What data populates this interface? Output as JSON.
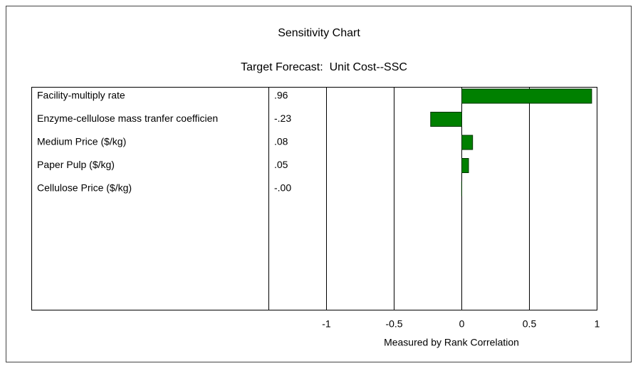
{
  "chart_data": {
    "type": "bar",
    "orientation": "horizontal",
    "title": "Sensitivity Chart",
    "subtitle": "Target Forecast:  Unit Cost--SSC",
    "x_label": "Measured by Rank Correlation",
    "categories": [
      "Facility-multiply rate",
      "Enzyme-cellulose mass tranfer coefficien",
      "Medium Price ($/kg)",
      "Paper Pulp ($/kg)",
      "Cellulose Price ($/kg)"
    ],
    "values": [
      0.96,
      -0.23,
      0.08,
      0.05,
      -0.001
    ],
    "value_labels": [
      ".96",
      "-.23",
      ".08",
      ".05",
      "-.00"
    ],
    "color": "#008000",
    "xlim": [
      -1,
      1
    ],
    "xticks": [
      -1,
      -0.5,
      0,
      0.5,
      1
    ],
    "grid": true
  }
}
